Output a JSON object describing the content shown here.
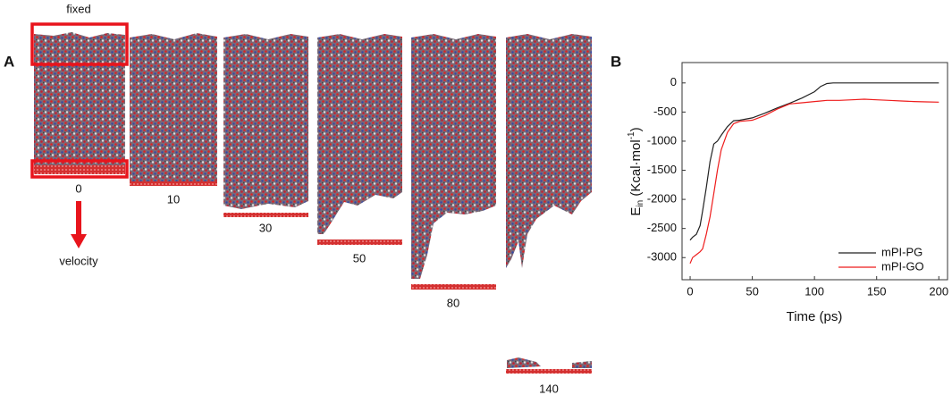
{
  "panel_a": {
    "label": "A",
    "fixed_label": "fixed",
    "velocity_label": "velocity",
    "snapshots": [
      0,
      10,
      30,
      50,
      80,
      140
    ]
  },
  "chart_data": {
    "type": "line",
    "panel_label": "B",
    "x_label": "Time (ps)",
    "y_label_parts": [
      "E",
      "in",
      " (Kcal·mol",
      "-1",
      ")"
    ],
    "xlim": [
      -6.5,
      207
    ],
    "ylim": [
      -3380,
      350
    ],
    "xticks": [
      0,
      50,
      100,
      150,
      200
    ],
    "yticks": [
      -3000,
      -2500,
      -2000,
      -1500,
      -1000,
      -500,
      0
    ],
    "legend": "lower right",
    "x": [
      0,
      2,
      5,
      8,
      10,
      13,
      16,
      19,
      22,
      25,
      30,
      35,
      40,
      50,
      60,
      70,
      80,
      90,
      100,
      105,
      110,
      115,
      120,
      130,
      140,
      150,
      160,
      170,
      180,
      190,
      200
    ],
    "series": [
      {
        "name": "mPI-PG",
        "color": "#222222",
        "values": [
          -2700,
          -2650,
          -2600,
          -2450,
          -2200,
          -1800,
          -1350,
          -1050,
          -1000,
          -900,
          -750,
          -650,
          -640,
          -600,
          -520,
          -430,
          -350,
          -260,
          -150,
          -60,
          -10,
          0,
          0,
          0,
          0,
          0,
          0,
          0,
          0,
          0,
          0
        ]
      },
      {
        "name": "mPI-GO",
        "color": "#ee1c1c",
        "values": [
          -3100,
          -3000,
          -2950,
          -2900,
          -2850,
          -2600,
          -2300,
          -1900,
          -1500,
          -1150,
          -850,
          -700,
          -660,
          -640,
          -560,
          -450,
          -360,
          -340,
          -320,
          -310,
          -300,
          -300,
          -300,
          -290,
          -280,
          -290,
          -300,
          -310,
          -320,
          -325,
          -330
        ]
      }
    ]
  }
}
